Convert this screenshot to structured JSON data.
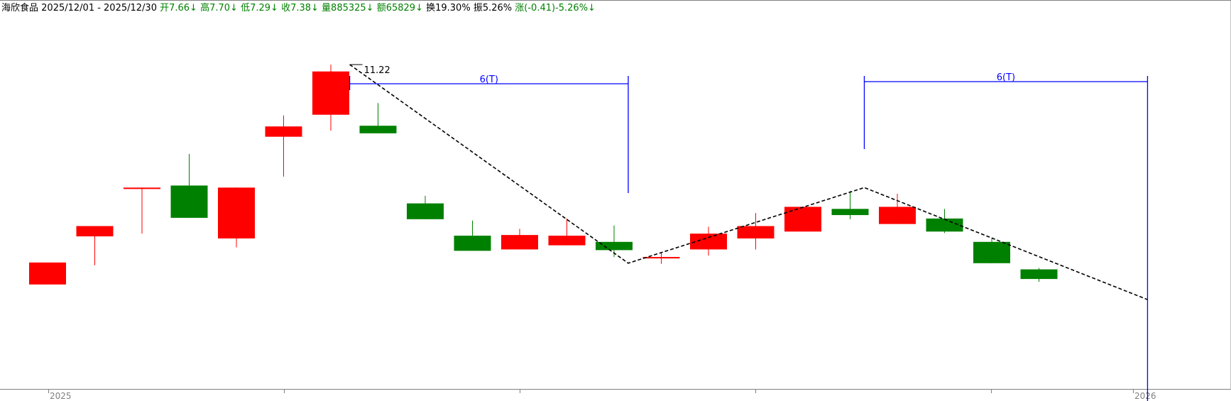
{
  "header": {
    "name": "海欣食品",
    "range": "2025/12/01 - 2025/12/30",
    "open": "开7.66↓",
    "high": "高7.70↓",
    "low": "低7.29↓",
    "close": "收7.38↓",
    "volume": "量885325↓",
    "amount": "额65829↓",
    "turnover": "换19.30%",
    "amplitude": "振5.26%",
    "change": "涨(-0.41)-5.26%↓"
  },
  "colors": {
    "up": "#ff0000",
    "down": "#008000",
    "annotation": "#0000ff",
    "trendline": "#000000",
    "axis": "#808080"
  },
  "chart_data": {
    "type": "candlestick",
    "candles": [
      {
        "o": 8.02,
        "c": 8.34,
        "h": 8.34,
        "l": 8.02
      },
      {
        "o": 8.72,
        "c": 8.87,
        "h": 8.87,
        "l": 8.3
      },
      {
        "o": 9.43,
        "c": 9.43,
        "h": 9.43,
        "l": 8.76
      },
      {
        "o": 9.46,
        "c": 8.99,
        "h": 9.92,
        "l": 8.99
      },
      {
        "o": 8.69,
        "c": 9.43,
        "h": 9.43,
        "l": 8.56
      },
      {
        "o": 10.17,
        "c": 10.32,
        "h": 10.48,
        "l": 9.59
      },
      {
        "o": 10.49,
        "c": 11.12,
        "h": 11.22,
        "l": 10.26
      },
      {
        "o": 10.33,
        "c": 10.22,
        "h": 10.66,
        "l": 10.22
      },
      {
        "o": 9.2,
        "c": 8.97,
        "h": 9.31,
        "l": 8.97
      },
      {
        "o": 8.73,
        "c": 8.51,
        "h": 8.95,
        "l": 8.51
      },
      {
        "o": 8.53,
        "c": 8.74,
        "h": 8.83,
        "l": 8.53
      },
      {
        "o": 8.59,
        "c": 8.73,
        "h": 8.98,
        "l": 8.59
      },
      {
        "o": 8.64,
        "c": 8.52,
        "h": 8.88,
        "l": 8.42
      },
      {
        "o": 8.4,
        "c": 8.42,
        "h": 8.49,
        "l": 8.32
      },
      {
        "o": 8.53,
        "c": 8.76,
        "h": 8.86,
        "l": 8.44
      },
      {
        "o": 8.69,
        "c": 8.87,
        "h": 9.06,
        "l": 8.53
      },
      {
        "o": 8.79,
        "c": 9.15,
        "h": 9.15,
        "l": 8.79
      },
      {
        "o": 9.12,
        "c": 9.03,
        "h": 9.38,
        "l": 8.97
      },
      {
        "o": 8.9,
        "c": 9.15,
        "h": 9.34,
        "l": 8.9
      },
      {
        "o": 8.98,
        "c": 8.79,
        "h": 9.12,
        "l": 8.77
      },
      {
        "o": 8.64,
        "c": 8.33,
        "h": 8.69,
        "l": 8.33
      },
      {
        "o": 8.24,
        "c": 8.1,
        "h": 8.26,
        "l": 8.06
      }
    ],
    "annotations": {
      "high_label": "11.22",
      "period_label_1": "6(T)",
      "period_label_2": "6(T)",
      "trend_points": [
        {
          "i": 6.4,
          "v": 11.22
        },
        {
          "i": 12.3,
          "v": 8.33
        },
        {
          "i": 17.3,
          "v": 9.43
        },
        {
          "i": 23.3,
          "v": 7.8
        }
      ],
      "period_brackets": [
        {
          "from": 6.4,
          "to": 12.3
        },
        {
          "from": 17.3,
          "to": 23.3
        }
      ]
    },
    "x_axis": {
      "labels": [
        "2025",
        "2026"
      ]
    },
    "ylim": [
      6.5,
      11.5
    ]
  }
}
